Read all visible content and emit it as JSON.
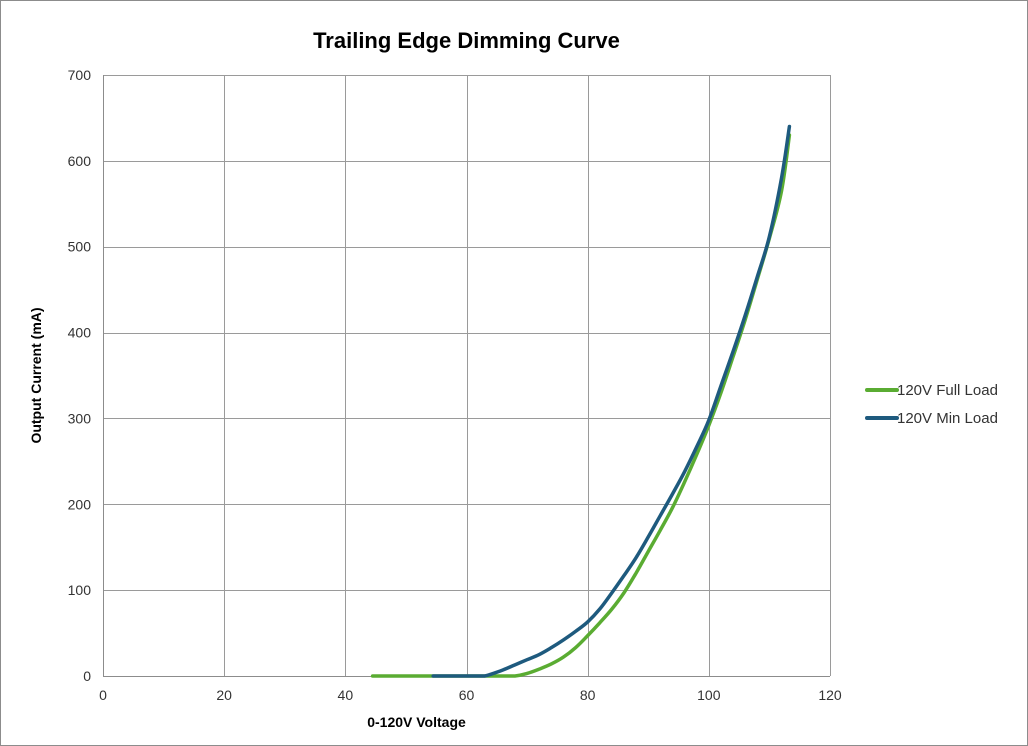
{
  "chart_data": {
    "type": "line",
    "title": "Trailing Edge Dimming Curve",
    "xlabel": "0-120V Voltage",
    "ylabel": "Output Current (mA)",
    "xlim": [
      0,
      120
    ],
    "ylim": [
      0,
      700
    ],
    "xticks": [
      0,
      20,
      40,
      60,
      80,
      100,
      120
    ],
    "yticks": [
      0,
      100,
      200,
      300,
      400,
      500,
      600,
      700
    ],
    "grid": true,
    "legend_position": "right",
    "series": [
      {
        "name": "120V Full Load",
        "color": "#5aac32",
        "x": [
          44.5,
          50,
          55,
          60,
          65,
          68,
          70,
          72,
          74,
          76,
          78,
          80,
          82,
          84,
          86,
          88,
          90,
          92,
          94,
          96,
          98,
          100,
          102,
          104,
          106,
          108,
          110,
          112,
          113.3
        ],
        "y": [
          0,
          0,
          0,
          0,
          0,
          0,
          3,
          8,
          14,
          22,
          33,
          47,
          62,
          78,
          97,
          120,
          145,
          170,
          196,
          226,
          258,
          292,
          330,
          372,
          415,
          462,
          510,
          565,
          630
        ]
      },
      {
        "name": "120V Min Load",
        "color": "#1e5a7e",
        "x": [
          54.5,
          58,
          62,
          63,
          64,
          66,
          68,
          70,
          72,
          74,
          76,
          78,
          80,
          82,
          84,
          86,
          88,
          90,
          92,
          94,
          96,
          98,
          100,
          102,
          104,
          106,
          108,
          110,
          112,
          113.3
        ],
        "y": [
          0,
          0,
          0,
          0,
          2,
          7,
          13,
          19,
          25,
          33,
          42,
          52,
          63,
          78,
          97,
          117,
          138,
          162,
          187,
          212,
          238,
          267,
          298,
          338,
          378,
          420,
          465,
          512,
          580,
          640
        ]
      }
    ]
  }
}
